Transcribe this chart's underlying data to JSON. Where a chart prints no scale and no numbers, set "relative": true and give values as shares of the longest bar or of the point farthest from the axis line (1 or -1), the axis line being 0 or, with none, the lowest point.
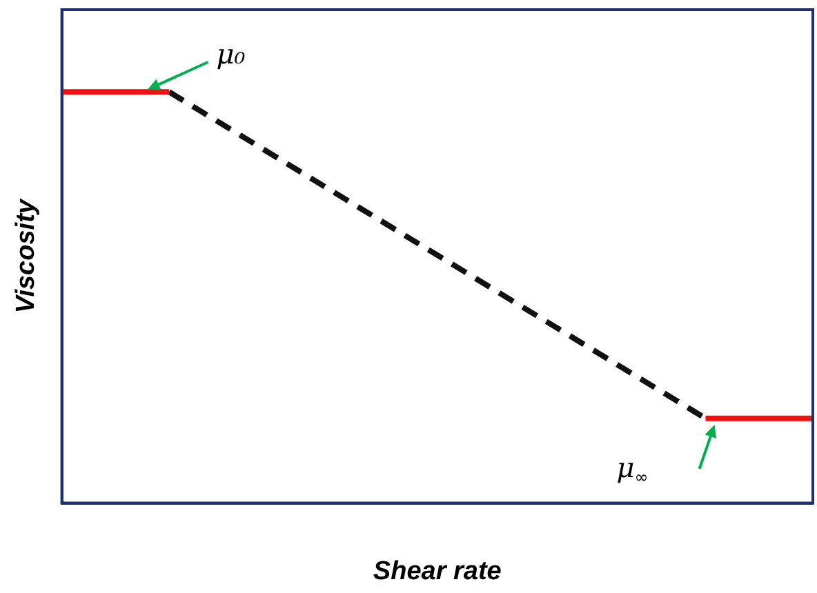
{
  "chart_data": {
    "type": "line",
    "relative": true,
    "xlabel": "Shear rate",
    "ylabel": "Viscosity",
    "legend": false,
    "grid": false,
    "marker": "none",
    "categories": [
      null,
      null,
      null,
      null,
      null,
      null,
      null,
      null
    ],
    "series": [
      {
        "color": "#ee1111",
        "values": [
          1,
          1,
          null,
          null,
          null,
          null,
          null,
          null
        ],
        "line_style": "solid"
      },
      {
        "color": "#111111",
        "values": [
          null,
          1,
          null,
          null,
          null,
          null,
          0.206,
          null
        ],
        "line_style": "dashed"
      },
      {
        "color": "#ee1111",
        "values": [
          null,
          null,
          null,
          null,
          null,
          null,
          0.206,
          0.206
        ],
        "line_style": "solid"
      }
    ],
    "annotations": [
      "μ₀",
      "μ$_{∞}$"
    ]
  }
}
